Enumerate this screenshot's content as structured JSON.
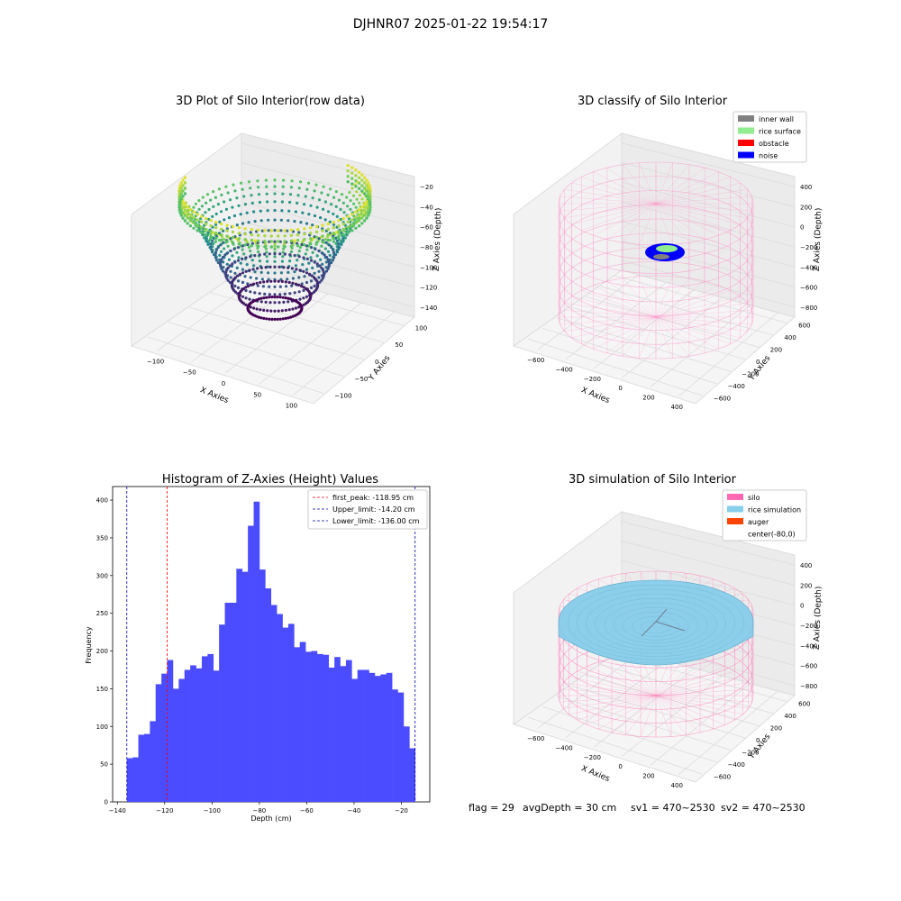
{
  "suptitle": "DJHNR07 2025-01-22 19:54:17",
  "status_line": {
    "flag": "flag = 29",
    "avg_depth": "avgDepth = 30 cm",
    "sv1": "sv1 = 470~2530",
    "sv2": "sv2 = 470~2530"
  },
  "colors": {
    "viridis": [
      "#440154",
      "#3b528b",
      "#21918c",
      "#5ec962",
      "#fde725"
    ],
    "pink": "#ff69b4",
    "hist_fill": "#4b4bff",
    "peak_line": "#ff0000",
    "limit_line": "#0000aa"
  },
  "chart_data": [
    {
      "type": "scatter3d",
      "title": "3D Plot of Silo Interior(row data)",
      "xlabel": "X Axies",
      "ylabel": "Y Axies",
      "zlabel": "Z Axies (Depth)",
      "xticks": [
        "−100",
        "−50",
        "0",
        "50",
        "100"
      ],
      "yticks": [
        "−100",
        "−50",
        "0",
        "50",
        "100"
      ],
      "zticks": [
        "−20",
        "−40",
        "−60",
        "−80",
        "−100",
        "−120",
        "−140"
      ],
      "xlim": [
        -130,
        130
      ],
      "ylim": [
        -110,
        110
      ],
      "zlim": [
        -145,
        -15
      ],
      "colormap": "viridis"
    },
    {
      "type": "scatter3d",
      "title": "3D classify of Silo Interior",
      "xlabel": "X Axies",
      "ylabel": "Y Axies",
      "zlabel": "Z Axies (Depth)",
      "xticks": [
        "−600",
        "−400",
        "−200",
        "0",
        "200",
        "400"
      ],
      "yticks": [
        "−600",
        "−400",
        "−200",
        "0",
        "200",
        "400",
        "600"
      ],
      "zticks": [
        "400",
        "200",
        "0",
        "−200",
        "−400",
        "−600",
        "−800"
      ],
      "legend": [
        {
          "label": "inner wall",
          "color": "#808080"
        },
        {
          "label": "rice surface",
          "color": "#90ee90"
        },
        {
          "label": "obstacle",
          "color": "#ff0000"
        },
        {
          "label": "noise",
          "color": "#0000ff"
        }
      ],
      "legend_position": "upper-right"
    },
    {
      "type": "histogram",
      "title": "Histogram of Z-Axies (Height) Values",
      "xlabel": "Depth (cm)",
      "ylabel": "Frequency",
      "xlim": [
        -142,
        -8
      ],
      "ylim": [
        0,
        418
      ],
      "xticks": [
        -140,
        -120,
        -100,
        -80,
        -60,
        -40,
        -20
      ],
      "yticks": [
        0,
        50,
        100,
        150,
        200,
        250,
        300,
        350,
        400
      ],
      "bin_start": -136,
      "bin_end": -14.2,
      "counts": [
        58,
        59,
        89,
        90,
        107,
        156,
        170,
        188,
        150,
        163,
        175,
        181,
        177,
        193,
        196,
        174,
        235,
        264,
        264,
        309,
        305,
        366,
        398,
        308,
        283,
        261,
        249,
        231,
        236,
        205,
        212,
        199,
        200,
        196,
        195,
        178,
        192,
        180,
        188,
        163,
        175,
        175,
        171,
        167,
        169,
        171,
        149,
        145,
        100,
        71
      ],
      "vlines": [
        {
          "label": "first_peak: -118.95 cm",
          "x": -118.95,
          "color": "#ff0000"
        },
        {
          "label": "Upper_limit: -14.20 cm",
          "x": -14.2,
          "color": "#0000aa"
        },
        {
          "label": "Lower_limit: -136.00 cm",
          "x": -136.0,
          "color": "#0000aa"
        }
      ],
      "legend_position": "upper-right"
    },
    {
      "type": "surface3d",
      "title": "3D simulation of Silo Interior",
      "xlabel": "X Axies",
      "ylabel": "Y Axies",
      "zlabel": "Z Axies (Depth)",
      "xticks": [
        "−600",
        "−400",
        "−200",
        "0",
        "200",
        "400"
      ],
      "yticks": [
        "−600",
        "−400",
        "−200",
        "0",
        "200",
        "400",
        "600"
      ],
      "zticks": [
        "400",
        "200",
        "0",
        "−200",
        "−400",
        "−600",
        "−800"
      ],
      "legend": [
        {
          "label": "silo",
          "color": "#ff69b4"
        },
        {
          "label": "rice simulation",
          "color": "#87ceeb"
        },
        {
          "label": "auger",
          "color": "#ff4500"
        },
        {
          "label": "center(-80,0)",
          "color": ""
        }
      ],
      "legend_position": "upper-right"
    }
  ]
}
